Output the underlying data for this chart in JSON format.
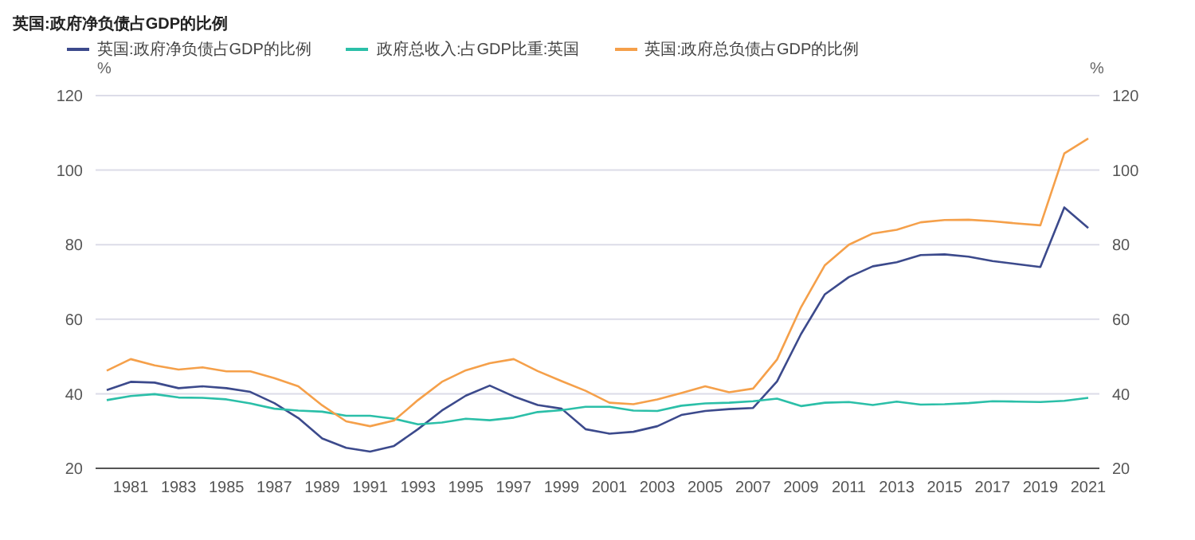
{
  "chart_data": {
    "type": "line",
    "title": "英国:政府净负债占GDP的比例",
    "ylabel": "%",
    "y2label": "%",
    "categories": [
      null,
      "1981",
      null,
      "1983",
      null,
      "1985",
      null,
      "1987",
      null,
      "1989",
      null,
      "1991",
      null,
      "1993",
      null,
      "1995",
      null,
      "1997",
      null,
      "1999",
      null,
      "2001",
      null,
      "2003",
      null,
      "2005",
      null,
      "2007",
      null,
      "2009",
      null,
      "2011",
      null,
      "2013",
      null,
      "2015",
      null,
      "2017",
      null,
      "2019",
      null,
      "2021"
    ],
    "series": [
      {
        "name": "英国:政府净负债占GDP的比例",
        "color": "#3c4a8c",
        "values": [
          41,
          43.2,
          43,
          41.5,
          42,
          41.5,
          40.5,
          37.5,
          33.5,
          28,
          25.5,
          24.5,
          26,
          30.5,
          35.5,
          39.5,
          42.2,
          39.3,
          37,
          36,
          30.5,
          29.3,
          29.8,
          31.3,
          34.3,
          35.4,
          35.9,
          36.2,
          43.3,
          56,
          66.7,
          71.3,
          74.2,
          75.3,
          77.2,
          77.4,
          76.8,
          75.6,
          74.8,
          74,
          90,
          84.5
        ]
      },
      {
        "name": "政府总收入:占GDP比重:英国",
        "color": "#2bbfa8",
        "values": [
          38.3,
          39.4,
          39.9,
          39,
          38.9,
          38.5,
          37.4,
          36,
          35.5,
          35.2,
          34.1,
          34.1,
          33.3,
          31.8,
          32.3,
          33.3,
          32.9,
          33.6,
          35.1,
          35.6,
          36.5,
          36.5,
          35.5,
          35.4,
          36.8,
          37.4,
          37.6,
          38,
          38.7,
          36.7,
          37.6,
          37.8,
          37,
          37.9,
          37.1,
          37.2,
          37.5,
          38,
          37.9,
          37.8,
          38.1,
          38.9
        ]
      },
      {
        "name": "英国:政府总负债占GDP的比例",
        "color": "#f5a04a",
        "values": [
          46.2,
          49.3,
          47.6,
          46.5,
          47.1,
          46,
          46,
          44.2,
          42,
          36.9,
          32.6,
          31.3,
          32.8,
          38.3,
          43.2,
          46.3,
          48.2,
          49.3,
          46.1,
          43.4,
          40.8,
          37.6,
          37.2,
          38.5,
          40.2,
          42,
          40.4,
          41.4,
          49.2,
          63.2,
          74.5,
          80,
          83,
          84,
          86,
          86.6,
          86.7,
          86.3,
          85.7,
          85.2,
          104.5,
          108.5
        ]
      }
    ],
    "ylim": [
      20,
      120
    ],
    "yticks": [
      20,
      40,
      60,
      80,
      100,
      120
    ],
    "y2lim": [
      20,
      120
    ],
    "y2ticks": [
      20,
      40,
      60,
      80,
      100,
      120
    ],
    "grid": "y",
    "legend": "top left",
    "marker": "none",
    "line_style": "solid"
  }
}
